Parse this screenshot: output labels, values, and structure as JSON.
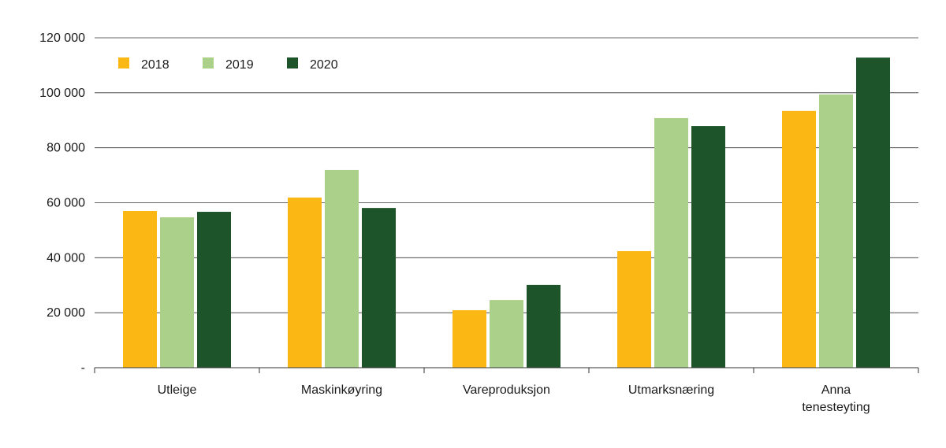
{
  "chart_data": {
    "type": "bar",
    "categories": [
      [
        "Utleige"
      ],
      [
        "Maskinkøyring"
      ],
      [
        "Vareproduksjon"
      ],
      [
        "Utmarksnæring"
      ],
      [
        "Anna",
        "tenesteyting"
      ]
    ],
    "series": [
      {
        "name": "2018",
        "color": "#fbb713",
        "values": [
          57000,
          61900,
          20900,
          42400,
          93400
        ]
      },
      {
        "name": "2019",
        "color": "#abd08a",
        "values": [
          54700,
          71900,
          24600,
          90800,
          99400
        ]
      },
      {
        "name": "2020",
        "color": "#1e5429",
        "values": [
          56700,
          58100,
          30100,
          87900,
          112800
        ]
      }
    ],
    "yticks": [
      0,
      20000,
      40000,
      60000,
      80000,
      100000,
      120000
    ],
    "ytick_labels": [
      "-",
      "20 000",
      "40 000",
      "60 000",
      "80 000",
      "100 000",
      "120 000"
    ],
    "ylim": [
      0,
      120000
    ],
    "grid": true,
    "legend": "top-left",
    "title": "",
    "xlabel": "",
    "ylabel": ""
  }
}
